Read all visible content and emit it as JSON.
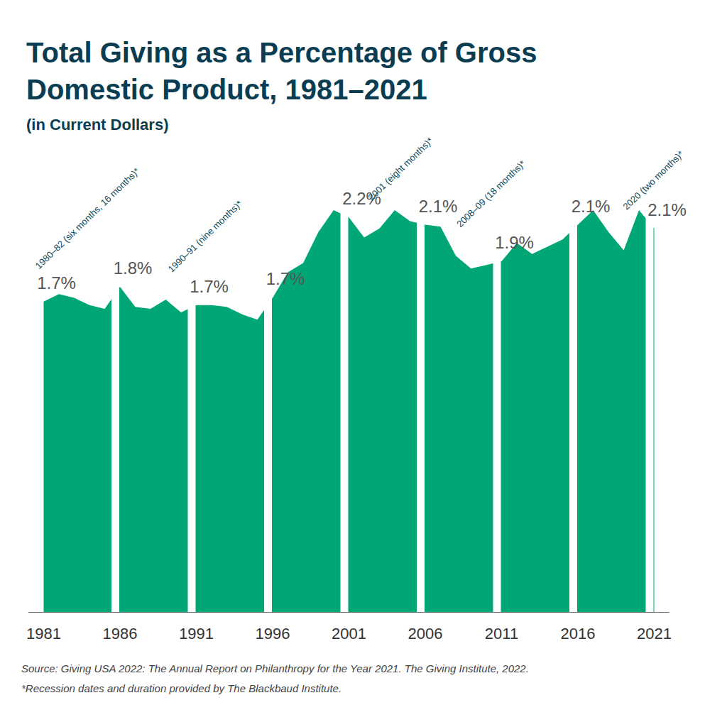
{
  "chart_data": {
    "type": "area",
    "title": "Total Giving as a Percentage of Gross Domestic Product, 1981–2021",
    "subtitle": "(in Current Dollars)",
    "source": "Source: Giving USA 2022: The Annual Report on Philanthropy for the Year 2021. The Giving Institute, 2022.",
    "note": "*Recession dates and duration provided by The Blackbaud Institute.",
    "x": [
      1981,
      1982,
      1983,
      1984,
      1985,
      1986,
      1987,
      1988,
      1989,
      1990,
      1991,
      1992,
      1993,
      1994,
      1995,
      1996,
      1997,
      1998,
      1999,
      2000,
      2001,
      2002,
      2003,
      2004,
      2005,
      2006,
      2007,
      2008,
      2009,
      2010,
      2011,
      2012,
      2013,
      2014,
      2015,
      2016,
      2017,
      2018,
      2019,
      2020,
      2021
    ],
    "values": [
      1.7,
      1.74,
      1.72,
      1.68,
      1.66,
      1.78,
      1.67,
      1.66,
      1.71,
      1.64,
      1.68,
      1.68,
      1.67,
      1.63,
      1.6,
      1.72,
      1.86,
      1.91,
      2.08,
      2.2,
      2.16,
      2.05,
      2.1,
      2.2,
      2.14,
      2.12,
      2.11,
      1.95,
      1.88,
      1.9,
      1.92,
      2.02,
      1.96,
      2.0,
      2.04,
      2.12,
      2.2,
      2.08,
      1.98,
      2.2,
      2.1
    ],
    "value_labels": [
      "1.7%",
      null,
      null,
      null,
      null,
      "1.8%",
      null,
      null,
      null,
      null,
      "1.7%",
      null,
      null,
      null,
      null,
      "1.7%",
      null,
      null,
      null,
      null,
      "2.2%",
      null,
      null,
      null,
      null,
      "2.1%",
      null,
      null,
      null,
      null,
      "1.9%",
      null,
      null,
      null,
      null,
      "2.1%",
      null,
      null,
      null,
      null,
      "2.1%"
    ],
    "data_labels": true,
    "color": "#00a676",
    "xlim": [
      1980,
      2022
    ],
    "xticks": [
      1981,
      1986,
      1991,
      1996,
      2001,
      2006,
      2011,
      2016,
      2021
    ],
    "ylim": [
      0,
      2.2
    ],
    "grid": false,
    "tick_labels": "x",
    "annotations": [
      {
        "x": 1980.7,
        "text": "1980–82 (six months, 16 months)*"
      },
      {
        "x": 1989.4,
        "text": "1990–91 (nine months)*"
      },
      {
        "x": 2002.5,
        "text": "2001 (eight months)*"
      },
      {
        "x": 2008.3,
        "text": "2008–09 (18 months)*"
      },
      {
        "x": 2019.2,
        "text": "2020 (two months)*"
      }
    ]
  }
}
